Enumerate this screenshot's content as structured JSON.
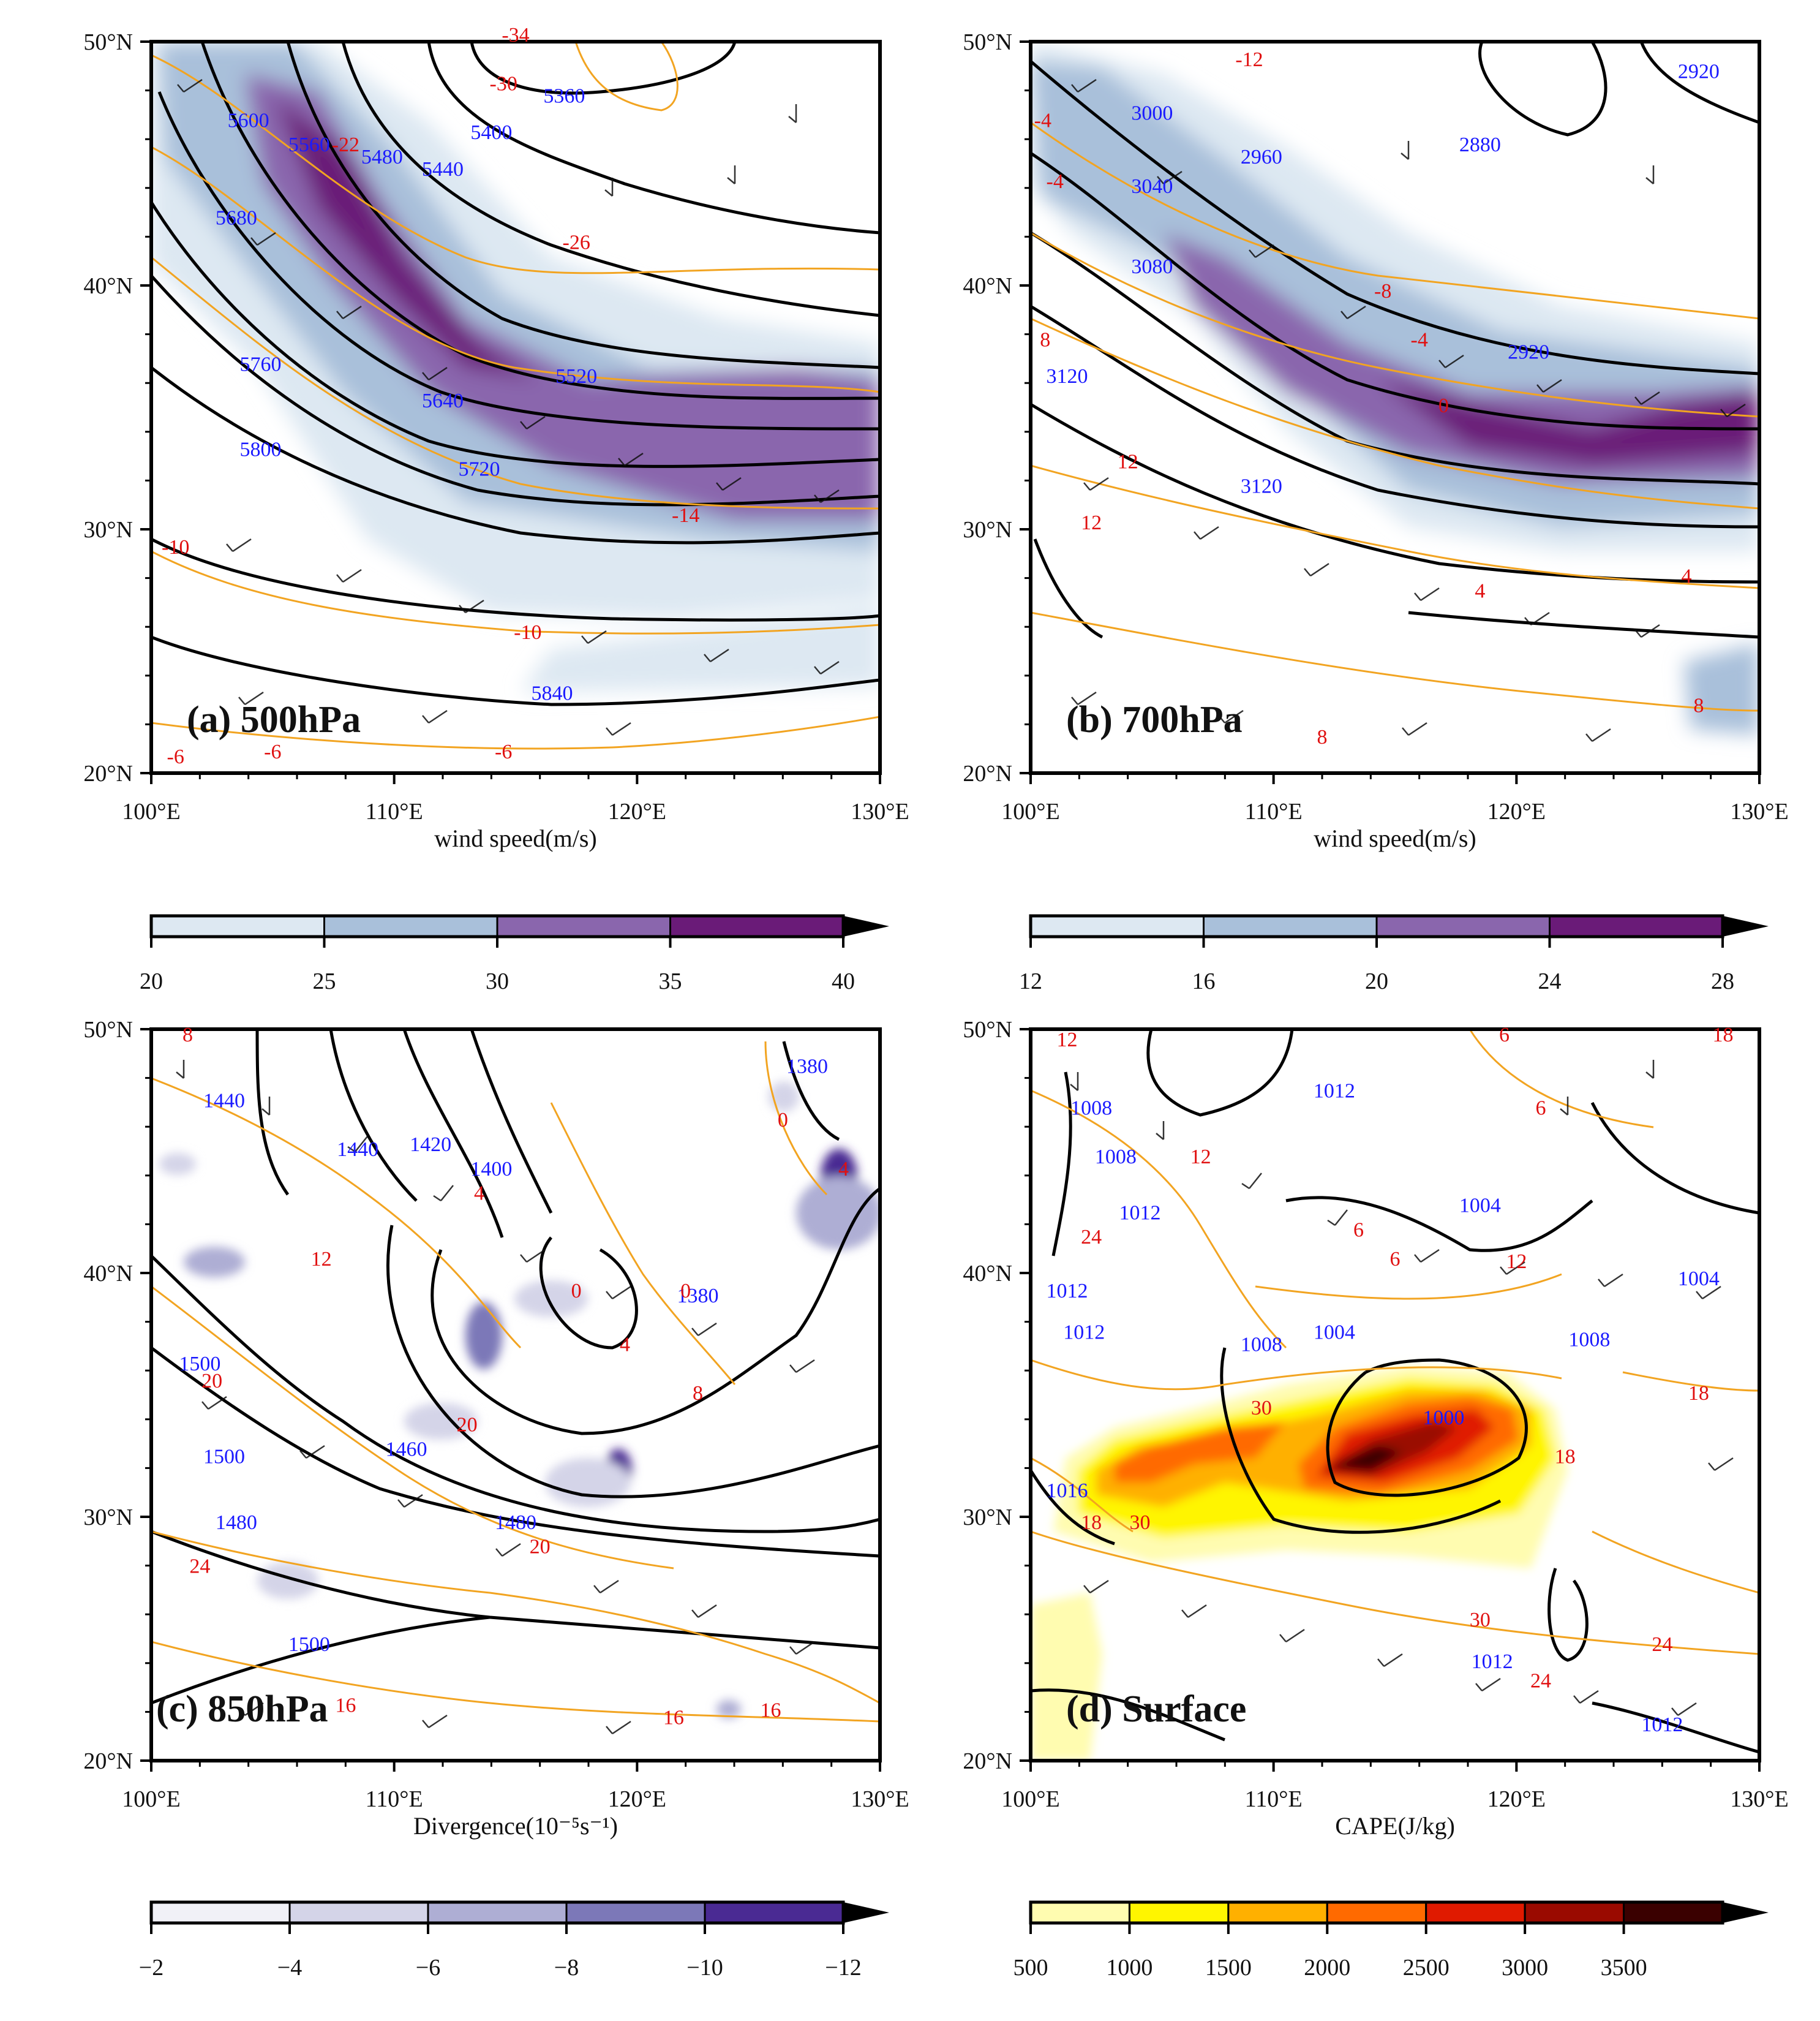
{
  "chart_data": [
    {
      "panel": "(a) 500hPa",
      "type": "heatmap",
      "xlim": [
        100,
        130
      ],
      "ylim": [
        20,
        50
      ],
      "x_ticks": [
        "100°E",
        "110°E",
        "120°E",
        "130°E"
      ],
      "y_ticks": [
        "20°N",
        "30°N",
        "40°N",
        "50°N"
      ],
      "shading_variable": "wind speed(m/s)",
      "colorbar_levels": [
        "20",
        "25",
        "30",
        "35",
        "40"
      ],
      "colorbar_colors": [
        "#dde8f2",
        "#a9c0da",
        "#8a66ad",
        "#6a1b78"
      ],
      "height_contours": [
        {
          "value": "5360",
          "lon": 117.0,
          "lat": 47.5
        },
        {
          "value": "5400",
          "lon": 114.0,
          "lat": 46.0
        },
        {
          "value": "5440",
          "lon": 112.0,
          "lat": 44.5
        },
        {
          "value": "5480",
          "lon": 109.5,
          "lat": 45.0
        },
        {
          "value": "5560",
          "lon": 106.5,
          "lat": 45.5
        },
        {
          "value": "5600",
          "lon": 104.0,
          "lat": 46.5
        },
        {
          "value": "5680",
          "lon": 103.5,
          "lat": 42.5
        },
        {
          "value": "5520",
          "lon": 117.5,
          "lat": 36.0
        },
        {
          "value": "5640",
          "lon": 112.0,
          "lat": 35.0
        },
        {
          "value": "5760",
          "lon": 104.5,
          "lat": 36.5
        },
        {
          "value": "5720",
          "lon": 113.5,
          "lat": 32.2
        },
        {
          "value": "5800",
          "lon": 104.5,
          "lat": 33.0
        },
        {
          "value": "5840",
          "lon": 116.5,
          "lat": 23.0
        }
      ],
      "temperature_contours": [
        {
          "value": "-34",
          "lon": 115.0,
          "lat": 50.0
        },
        {
          "value": "-30",
          "lon": 114.5,
          "lat": 48.0
        },
        {
          "value": "-26",
          "lon": 117.5,
          "lat": 41.5
        },
        {
          "value": "-22",
          "lon": 108.0,
          "lat": 45.5
        },
        {
          "value": "-14",
          "lon": 122.0,
          "lat": 30.3
        },
        {
          "value": "-10",
          "lon": 101.0,
          "lat": 29.0
        },
        {
          "value": "-10",
          "lon": 115.5,
          "lat": 25.5
        },
        {
          "value": "-6",
          "lon": 101.0,
          "lat": 20.4
        },
        {
          "value": "-6",
          "lon": 105.0,
          "lat": 20.6
        },
        {
          "value": "-6",
          "lon": 114.5,
          "lat": 20.6
        }
      ]
    },
    {
      "panel": "(b) 700hPa",
      "type": "heatmap",
      "xlim": [
        100,
        130
      ],
      "ylim": [
        20,
        50
      ],
      "x_ticks": [
        "100°E",
        "110°E",
        "120°E",
        "130°E"
      ],
      "y_ticks": [
        "20°N",
        "30°N",
        "40°N",
        "50°N"
      ],
      "shading_variable": "wind speed(m/s)",
      "colorbar_levels": [
        "12",
        "16",
        "20",
        "24",
        "28"
      ],
      "colorbar_colors": [
        "#dde8f2",
        "#a9c0da",
        "#8a66ad",
        "#6a1b78"
      ],
      "height_contours": [
        {
          "value": "2920",
          "lon": 127.5,
          "lat": 48.5
        },
        {
          "value": "3000",
          "lon": 105.0,
          "lat": 46.8
        },
        {
          "value": "2960",
          "lon": 109.5,
          "lat": 45.0
        },
        {
          "value": "2880",
          "lon": 118.5,
          "lat": 45.5
        },
        {
          "value": "3040",
          "lon": 105.0,
          "lat": 43.8
        },
        {
          "value": "3080",
          "lon": 105.0,
          "lat": 40.5
        },
        {
          "value": "2920",
          "lon": 120.5,
          "lat": 37.0
        },
        {
          "value": "3120",
          "lon": 101.5,
          "lat": 36.0
        },
        {
          "value": "3120",
          "lon": 109.5,
          "lat": 31.5
        }
      ],
      "temperature_contours": [
        {
          "value": "-12",
          "lon": 109.0,
          "lat": 49.0
        },
        {
          "value": "-4",
          "lon": 100.5,
          "lat": 46.5
        },
        {
          "value": "-4",
          "lon": 101.0,
          "lat": 44.0
        },
        {
          "value": "-8",
          "lon": 114.5,
          "lat": 39.5
        },
        {
          "value": "-4",
          "lon": 116.0,
          "lat": 37.5
        },
        {
          "value": "0",
          "lon": 117.0,
          "lat": 34.8
        },
        {
          "value": "8",
          "lon": 100.6,
          "lat": 37.5
        },
        {
          "value": "12",
          "lon": 104.0,
          "lat": 32.5
        },
        {
          "value": "12",
          "lon": 102.5,
          "lat": 30.0
        },
        {
          "value": "4",
          "lon": 127.0,
          "lat": 27.8
        },
        {
          "value": "4",
          "lon": 118.5,
          "lat": 27.2
        },
        {
          "value": "8",
          "lon": 127.5,
          "lat": 22.5
        },
        {
          "value": "8",
          "lon": 112.0,
          "lat": 21.2
        }
      ]
    },
    {
      "panel": "(c) 850hPa",
      "type": "heatmap",
      "xlim": [
        100,
        130
      ],
      "ylim": [
        20,
        50
      ],
      "x_ticks": [
        "100°E",
        "110°E",
        "120°E",
        "130°E"
      ],
      "y_ticks": [
        "20°N",
        "30°N",
        "40°N",
        "50°N"
      ],
      "shading_variable": "Divergence(10⁻⁵s⁻¹)",
      "colorbar_levels": [
        "−2",
        "−4",
        "−6",
        "−8",
        "−10",
        "−12"
      ],
      "colorbar_colors": [
        "#f1f1f7",
        "#d4d4e8",
        "#aeaed4",
        "#7c78b8",
        "#4a2a93"
      ],
      "height_contours": [
        {
          "value": "1380",
          "lon": 127.0,
          "lat": 48.2
        },
        {
          "value": "1440",
          "lon": 103.0,
          "lat": 46.8
        },
        {
          "value": "1440",
          "lon": 108.5,
          "lat": 44.8
        },
        {
          "value": "1420",
          "lon": 111.5,
          "lat": 45.0
        },
        {
          "value": "1400",
          "lon": 114.0,
          "lat": 44.0
        },
        {
          "value": "1380",
          "lon": 122.5,
          "lat": 38.8
        },
        {
          "value": "1500",
          "lon": 102.0,
          "lat": 36.0
        },
        {
          "value": "1460",
          "lon": 110.5,
          "lat": 32.5
        },
        {
          "value": "1500",
          "lon": 103.0,
          "lat": 32.2
        },
        {
          "value": "1480",
          "lon": 103.5,
          "lat": 29.5
        },
        {
          "value": "1480",
          "lon": 115.0,
          "lat": 29.5
        },
        {
          "value": "1500",
          "lon": 106.5,
          "lat": 24.5
        }
      ],
      "temperature_contours": [
        {
          "value": "8",
          "lon": 101.5,
          "lat": 49.5
        },
        {
          "value": "0",
          "lon": 126.0,
          "lat": 46.0
        },
        {
          "value": "4",
          "lon": 128.5,
          "lat": 44.0
        },
        {
          "value": "4",
          "lon": 113.5,
          "lat": 43.0
        },
        {
          "value": "12",
          "lon": 107.0,
          "lat": 40.3
        },
        {
          "value": "0",
          "lon": 117.5,
          "lat": 39.0
        },
        {
          "value": "0",
          "lon": 122.0,
          "lat": 39.0
        },
        {
          "value": "4",
          "lon": 119.5,
          "lat": 36.8
        },
        {
          "value": "8",
          "lon": 122.5,
          "lat": 34.8
        },
        {
          "value": "20",
          "lon": 102.5,
          "lat": 35.3
        },
        {
          "value": "20",
          "lon": 113.0,
          "lat": 33.5
        },
        {
          "value": "20",
          "lon": 116.0,
          "lat": 28.5
        },
        {
          "value": "24",
          "lon": 102.0,
          "lat": 27.7
        },
        {
          "value": "16",
          "lon": 121.5,
          "lat": 21.5
        },
        {
          "value": "16",
          "lon": 125.5,
          "lat": 21.8
        },
        {
          "value": "16",
          "lon": 108.0,
          "lat": 22.0
        }
      ]
    },
    {
      "panel": "(d) Surface",
      "type": "heatmap",
      "xlim": [
        100,
        130
      ],
      "ylim": [
        20,
        50
      ],
      "x_ticks": [
        "100°E",
        "110°E",
        "120°E",
        "130°E"
      ],
      "y_ticks": [
        "20°N",
        "30°N",
        "40°N",
        "50°N"
      ],
      "shading_variable": "CAPE(J/kg)",
      "colorbar_levels": [
        "500",
        "1000",
        "1500",
        "2000",
        "2500",
        "3000",
        "3500"
      ],
      "colorbar_colors": [
        "#fffcb0",
        "#fff500",
        "#ffb000",
        "#ff6a00",
        "#e01a00",
        "#9a0a00",
        "#3a0000"
      ],
      "pressure_contours": [
        {
          "value": "1012",
          "lon": 112.5,
          "lat": 47.2
        },
        {
          "value": "1008",
          "lon": 102.5,
          "lat": 46.5
        },
        {
          "value": "1008",
          "lon": 103.5,
          "lat": 44.5
        },
        {
          "value": "1012",
          "lon": 104.5,
          "lat": 42.2
        },
        {
          "value": "1004",
          "lon": 118.5,
          "lat": 42.5
        },
        {
          "value": "1004",
          "lon": 127.5,
          "lat": 39.5
        },
        {
          "value": "1012",
          "lon": 101.5,
          "lat": 39.0
        },
        {
          "value": "1012",
          "lon": 102.2,
          "lat": 37.3
        },
        {
          "value": "1008",
          "lon": 109.5,
          "lat": 36.8
        },
        {
          "value": "1004",
          "lon": 112.5,
          "lat": 37.3
        },
        {
          "value": "1008",
          "lon": 123.0,
          "lat": 37.0
        },
        {
          "value": "1000",
          "lon": 117.0,
          "lat": 33.8
        },
        {
          "value": "1016",
          "lon": 101.5,
          "lat": 30.8
        },
        {
          "value": "1012",
          "lon": 119.0,
          "lat": 23.8
        },
        {
          "value": "1012",
          "lon": 126.0,
          "lat": 21.2
        }
      ],
      "temperature_contours": [
        {
          "value": "12",
          "lon": 101.5,
          "lat": 49.3
        },
        {
          "value": "6",
          "lon": 119.5,
          "lat": 49.5
        },
        {
          "value": "18",
          "lon": 128.5,
          "lat": 49.5
        },
        {
          "value": "6",
          "lon": 121.0,
          "lat": 46.5
        },
        {
          "value": "12",
          "lon": 107.0,
          "lat": 44.5
        },
        {
          "value": "24",
          "lon": 102.5,
          "lat": 41.2
        },
        {
          "value": "6",
          "lon": 113.5,
          "lat": 41.5
        },
        {
          "value": "6",
          "lon": 115.0,
          "lat": 40.3
        },
        {
          "value": "12",
          "lon": 120.0,
          "lat": 40.2
        },
        {
          "value": "30",
          "lon": 109.5,
          "lat": 34.2
        },
        {
          "value": "18",
          "lon": 127.5,
          "lat": 34.8
        },
        {
          "value": "18",
          "lon": 122.0,
          "lat": 32.2
        },
        {
          "value": "30",
          "lon": 104.5,
          "lat": 29.5
        },
        {
          "value": "18",
          "lon": 102.5,
          "lat": 29.5
        },
        {
          "value": "30",
          "lon": 118.5,
          "lat": 25.5
        },
        {
          "value": "24",
          "lon": 121.0,
          "lat": 23.0
        },
        {
          "value": "24",
          "lon": 126.0,
          "lat": 24.5
        }
      ]
    }
  ]
}
